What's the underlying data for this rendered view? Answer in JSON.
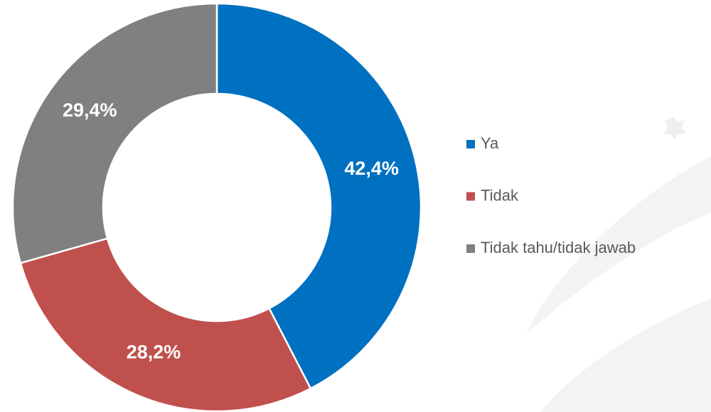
{
  "chart_data": {
    "type": "donut",
    "categories": [
      "Ya",
      "Tidak",
      "Tidak tahu/tidak jawab"
    ],
    "values": [
      42.4,
      28.2,
      29.4
    ],
    "value_labels": [
      "42,4%",
      "28,2%",
      "29,4%"
    ],
    "colors": [
      "#0070c0",
      "#c0504d",
      "#808080"
    ],
    "legend": "right"
  }
}
